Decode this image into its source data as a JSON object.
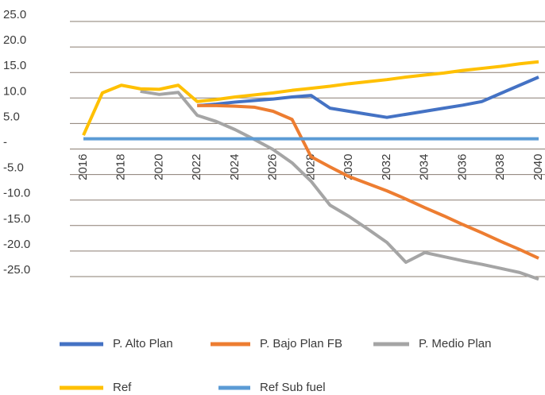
{
  "chart_data": {
    "type": "line",
    "x": [
      2016,
      2017,
      2018,
      2019,
      2020,
      2021,
      2022,
      2023,
      2024,
      2025,
      2026,
      2027,
      2028,
      2029,
      2030,
      2031,
      2032,
      2033,
      2034,
      2035,
      2036,
      2037,
      2038,
      2039,
      2040
    ],
    "xlim": [
      2016,
      2040
    ],
    "xticks": [
      2016,
      2018,
      2020,
      2022,
      2024,
      2026,
      2028,
      2030,
      2032,
      2034,
      2036,
      2038,
      2040
    ],
    "ylim": [
      -25,
      25
    ],
    "yticks": [
      {
        "value": 25,
        "label": "25.0"
      },
      {
        "value": 20,
        "label": "20.0"
      },
      {
        "value": 15,
        "label": "15.0"
      },
      {
        "value": 10,
        "label": "10.0"
      },
      {
        "value": 5,
        "label": "5.0"
      },
      {
        "value": 0,
        "label": "-"
      },
      {
        "value": -5,
        "label": "-5.0"
      },
      {
        "value": -10,
        "label": "-10.0"
      },
      {
        "value": -15,
        "label": "-15.0"
      },
      {
        "value": -20,
        "label": "-20.0"
      },
      {
        "value": -25,
        "label": "-25.0"
      }
    ],
    "grid": true,
    "legend": "bottom",
    "series": [
      {
        "name": "P. Alto Plan",
        "color": "#4472c4",
        "values": [
          null,
          null,
          null,
          null,
          null,
          null,
          8.5,
          8.8,
          9.2,
          9.5,
          9.8,
          10.2,
          10.5,
          8.0,
          7.4,
          6.8,
          6.2,
          6.8,
          7.4,
          8.0,
          8.6,
          9.3,
          10.9,
          12.5,
          14.1
        ]
      },
      {
        "name": "P. Bajo Plan FB",
        "color": "#ed7d31",
        "values": [
          null,
          null,
          null,
          null,
          null,
          null,
          8.5,
          8.5,
          8.4,
          8.2,
          7.4,
          5.8,
          -1.5,
          -3.5,
          -5.4,
          -6.8,
          -8.2,
          -9.8,
          -11.5,
          -13.1,
          -14.8,
          -16.4,
          -18.1,
          -19.7,
          -21.4
        ]
      },
      {
        "name": "P. Medio Plan",
        "color": "#a5a5a5",
        "values": [
          null,
          null,
          null,
          11.3,
          10.7,
          11.1,
          6.6,
          5.4,
          3.8,
          1.9,
          -0.1,
          -2.7,
          -6.3,
          -11.0,
          -13.2,
          -15.7,
          -18.3,
          -22.2,
          -20.3,
          -21.1,
          -21.9,
          -22.6,
          -23.4,
          -24.2,
          -25.5
        ]
      },
      {
        "name": "Ref",
        "color": "#ffc000",
        "values": [
          2.7,
          11.0,
          12.5,
          11.8,
          11.7,
          12.5,
          9.3,
          9.7,
          10.2,
          10.6,
          11.0,
          11.5,
          11.9,
          12.3,
          12.8,
          13.2,
          13.6,
          14.1,
          14.5,
          14.9,
          15.4,
          15.8,
          16.2,
          16.7,
          17.1
        ]
      },
      {
        "name": "Ref Sub fuel",
        "color": "#5b9bd5",
        "values": [
          2.0,
          2.0,
          2.0,
          2.0,
          2.0,
          2.0,
          2.0,
          2.0,
          2.0,
          2.0,
          2.0,
          2.0,
          2.0,
          2.0,
          2.0,
          2.0,
          2.0,
          2.0,
          2.0,
          2.0,
          2.0,
          2.0,
          2.0,
          2.0,
          2.0
        ]
      }
    ]
  }
}
